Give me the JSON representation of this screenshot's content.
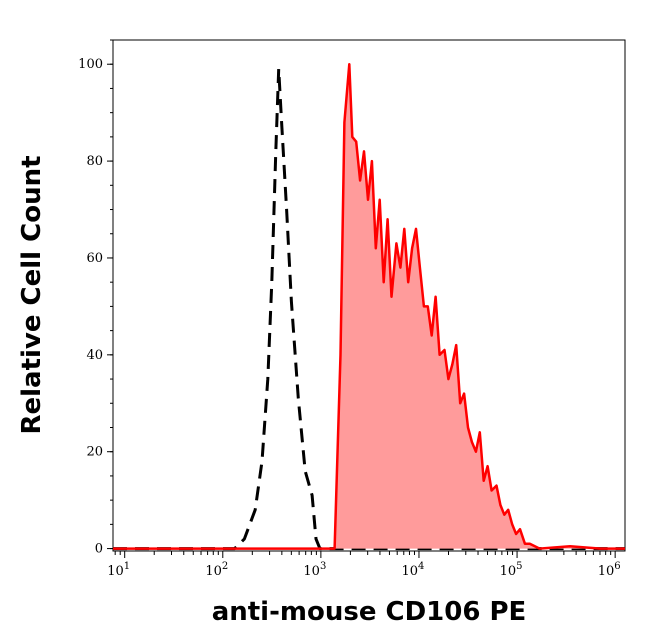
{
  "chart_data": {
    "type": "histogram-overlay",
    "x_label": "anti-mouse CD106 PE",
    "y_label": "Relative Cell Count",
    "xscale": "log",
    "xlim": [
      7.6,
      1260000
    ],
    "ylim": [
      -0.5,
      105
    ],
    "xticks": [
      {
        "value": 10,
        "label": "10",
        "exponent": "1"
      },
      {
        "value": 100,
        "label": "10",
        "exponent": "2"
      },
      {
        "value": 1000,
        "label": "10",
        "exponent": "3"
      },
      {
        "value": 10000,
        "label": "10",
        "exponent": "4"
      },
      {
        "value": 100000,
        "label": "10",
        "exponent": "5"
      },
      {
        "value": 1000000,
        "label": "10",
        "exponent": "6"
      }
    ],
    "yticks": [
      0,
      20,
      40,
      60,
      80,
      100
    ],
    "series": [
      {
        "color": "#000000",
        "dashed": true,
        "filled": false,
        "x": [
          7.6,
          120,
          132,
          166,
          214,
          251,
          288,
          316,
          347,
          372,
          398,
          447,
          501,
          589,
          692,
          813,
          891,
          977,
          1260000
        ],
        "values": [
          0,
          0,
          0,
          2,
          8,
          18,
          35,
          55,
          82,
          99,
          88,
          70,
          51,
          31,
          16,
          11,
          2,
          0,
          0
        ]
      },
      {
        "color": "#ff0000",
        "fill": "#ff9b9b",
        "dashed": false,
        "filled": true,
        "x": [
          7.6,
          1380,
          1585,
          1738,
          1950,
          2090,
          2290,
          2510,
          2750,
          3020,
          3310,
          3630,
          3980,
          4370,
          4790,
          5250,
          5890,
          6460,
          7080,
          7760,
          8510,
          9330,
          10230,
          11220,
          12300,
          13490,
          14790,
          16220,
          18200,
          19950,
          21880,
          23990,
          26300,
          28840,
          31620,
          34670,
          38020,
          41690,
          45710,
          50120,
          54950,
          61660,
          67610,
          74130,
          81280,
          89130,
          97720,
          107200,
          120200,
          134900,
          169800,
          346700,
          707900,
          1260000
        ],
        "values": [
          0,
          0,
          40,
          88,
          100,
          85,
          84,
          76,
          82,
          72,
          80,
          62,
          72,
          55,
          68,
          52,
          63,
          58,
          66,
          55,
          62,
          66,
          58,
          50,
          50,
          44,
          52,
          40,
          41,
          35,
          38,
          42,
          30,
          32,
          25,
          22,
          20,
          24,
          14,
          17,
          12,
          13,
          9,
          7,
          8,
          5,
          3,
          4,
          1,
          1,
          0,
          0.5,
          0,
          0
        ]
      }
    ]
  }
}
